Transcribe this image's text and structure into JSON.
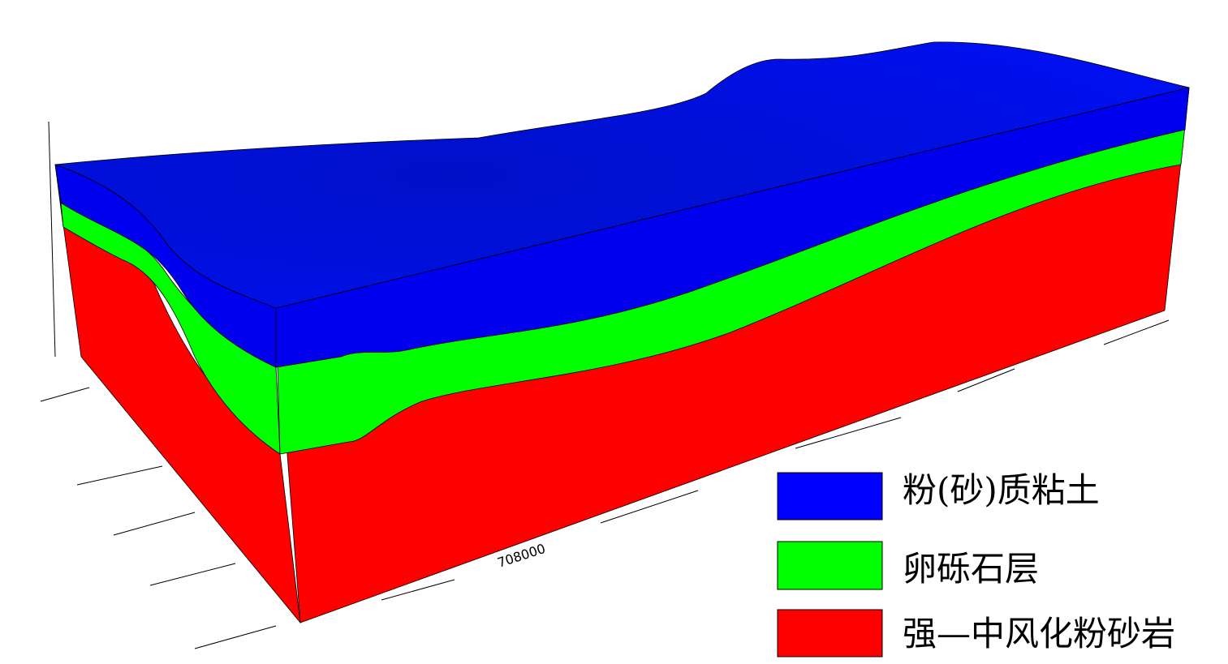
{
  "axis_labels": [
    "708000"
  ],
  "legend": [
    {
      "label": "粉(砂)质粘土",
      "color": "#0000ff"
    },
    {
      "label": "卵砾石层",
      "color": "#00ff00"
    },
    {
      "label": "强—中风化粉砂岩",
      "color": "#ff0000"
    }
  ]
}
